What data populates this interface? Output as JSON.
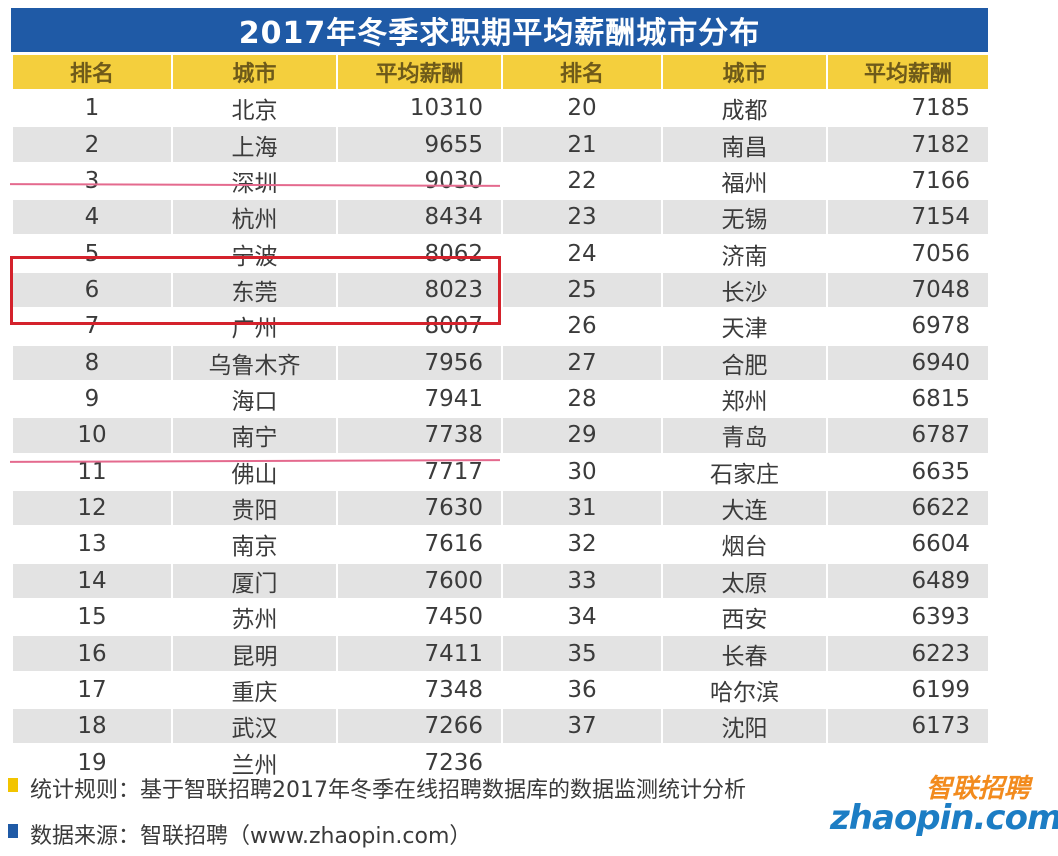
{
  "title": "2017年冬季求职期平均薪酬城市分布",
  "columns": [
    "排名",
    "城市",
    "平均薪酬",
    "排名",
    "城市",
    "平均薪酬"
  ],
  "colors": {
    "title_bg": "#1f5aa6",
    "header_bg": "#f4cf3d",
    "row_alt_bg": "#e3e3e3",
    "highlight_line": "#e46a8e",
    "highlight_box": "#d4222c",
    "note_bullet_1": "#f2c400",
    "note_bullet_2": "#1f5aa6"
  },
  "chart_data": {
    "type": "table",
    "title": "2017年冬季求职期平均薪酬城市分布",
    "columns": [
      "排名",
      "城市",
      "平均薪酬"
    ],
    "rows": [
      [
        "1",
        "北京",
        "10310"
      ],
      [
        "2",
        "上海",
        "9655"
      ],
      [
        "3",
        "深圳",
        "9030"
      ],
      [
        "4",
        "杭州",
        "8434"
      ],
      [
        "5",
        "宁波",
        "8062"
      ],
      [
        "6",
        "东莞",
        "8023"
      ],
      [
        "7",
        "广州",
        "8007"
      ],
      [
        "8",
        "乌鲁木齐",
        "7956"
      ],
      [
        "9",
        "海口",
        "7941"
      ],
      [
        "10",
        "南宁",
        "7738"
      ],
      [
        "11",
        "佛山",
        "7717"
      ],
      [
        "12",
        "贵阳",
        "7630"
      ],
      [
        "13",
        "南京",
        "7616"
      ],
      [
        "14",
        "厦门",
        "7600"
      ],
      [
        "15",
        "苏州",
        "7450"
      ],
      [
        "16",
        "昆明",
        "7411"
      ],
      [
        "17",
        "重庆",
        "7348"
      ],
      [
        "18",
        "武汉",
        "7266"
      ],
      [
        "19",
        "兰州",
        "7236"
      ],
      [
        "20",
        "成都",
        "7185"
      ],
      [
        "21",
        "南昌",
        "7182"
      ],
      [
        "22",
        "福州",
        "7166"
      ],
      [
        "23",
        "无锡",
        "7154"
      ],
      [
        "24",
        "济南",
        "7056"
      ],
      [
        "25",
        "长沙",
        "7048"
      ],
      [
        "26",
        "天津",
        "6978"
      ],
      [
        "27",
        "合肥",
        "6940"
      ],
      [
        "28",
        "郑州",
        "6815"
      ],
      [
        "29",
        "青岛",
        "6787"
      ],
      [
        "30",
        "石家庄",
        "6635"
      ],
      [
        "31",
        "大连",
        "6622"
      ],
      [
        "32",
        "烟台",
        "6604"
      ],
      [
        "33",
        "太原",
        "6489"
      ],
      [
        "34",
        "西安",
        "6393"
      ],
      [
        "35",
        "长春",
        "6223"
      ],
      [
        "36",
        "哈尔滨",
        "6199"
      ],
      [
        "37",
        "沈阳",
        "6173"
      ]
    ]
  },
  "notes": {
    "rule": "统计规则：基于智联招聘2017年冬季在线招聘数据库的数据监测统计分析",
    "source": "数据来源：智联招聘（www.zhaopin.com）"
  },
  "logo": {
    "cn": "智联招聘",
    "en": "zhaopin.com"
  }
}
